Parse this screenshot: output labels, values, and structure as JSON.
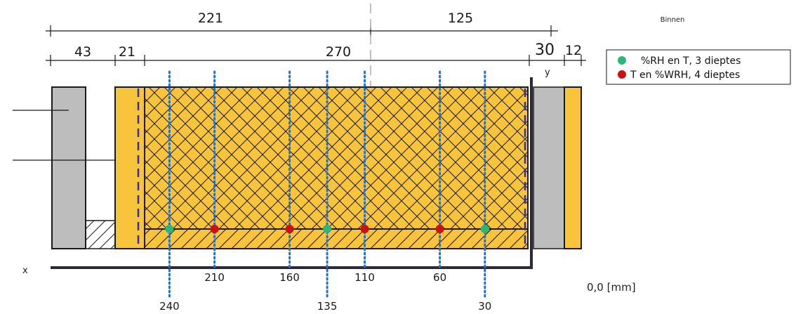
{
  "labels": {
    "side_label": "Binnen",
    "axis_x": "x",
    "axis_y": "y",
    "origin": "0,0 [mm]"
  },
  "dimensions": {
    "top_row": [
      "221",
      "125"
    ],
    "second_row": [
      "43",
      "21",
      "270",
      "30",
      "12"
    ]
  },
  "legend": {
    "items": [
      {
        "label": "%RH en T, 3 dieptes",
        "color": "#2db57c"
      },
      {
        "label": "T en %WRH, 4 dieptes",
        "color": "#cc1111"
      }
    ]
  },
  "probes": [
    {
      "depth": "240",
      "type": "rh",
      "label_row": "low"
    },
    {
      "depth": "210",
      "type": "wrh",
      "label_row": "high"
    },
    {
      "depth": "160",
      "type": "wrh",
      "label_row": "high"
    },
    {
      "depth": "135",
      "type": "rh",
      "label_row": "low"
    },
    {
      "depth": "110",
      "type": "wrh",
      "label_row": "high"
    },
    {
      "depth": "60",
      "type": "wrh",
      "label_row": "high"
    },
    {
      "depth": "30",
      "type": "rh",
      "label_row": "low"
    }
  ],
  "colors": {
    "insulation": "#f7c43c",
    "gray_layer": "#bdbdbd",
    "probe_line": "#1f6fd6",
    "membrane_dash": "#3a2fa0",
    "axis": "#2a2a3a"
  }
}
